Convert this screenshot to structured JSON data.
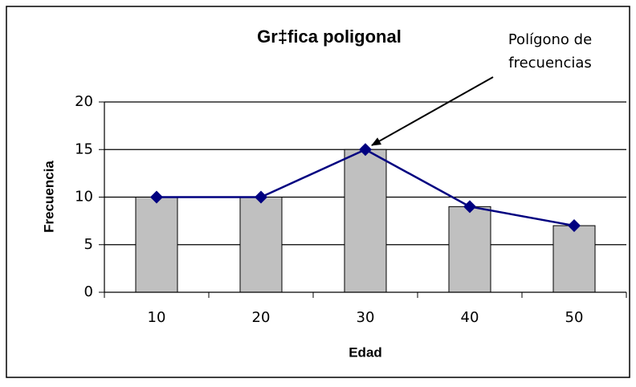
{
  "chart_data": {
    "type": "bar",
    "title": "Gr‡fica poligonal",
    "annotation": [
      "Polígono de",
      "frecuencias"
    ],
    "x_label": "Edad",
    "y_label": "Frecuencia",
    "categories": [
      "10",
      "20",
      "30",
      "40",
      "50"
    ],
    "values": [
      10,
      10,
      15,
      9,
      7
    ],
    "color": "#c0c0c0",
    "overlay": {
      "type": "line",
      "color": "#000080",
      "values": [
        10,
        10,
        15,
        9,
        7
      ]
    },
    "ylim": [
      0,
      20
    ],
    "yticks": [
      0,
      5,
      10,
      15,
      20
    ],
    "grid": true
  }
}
